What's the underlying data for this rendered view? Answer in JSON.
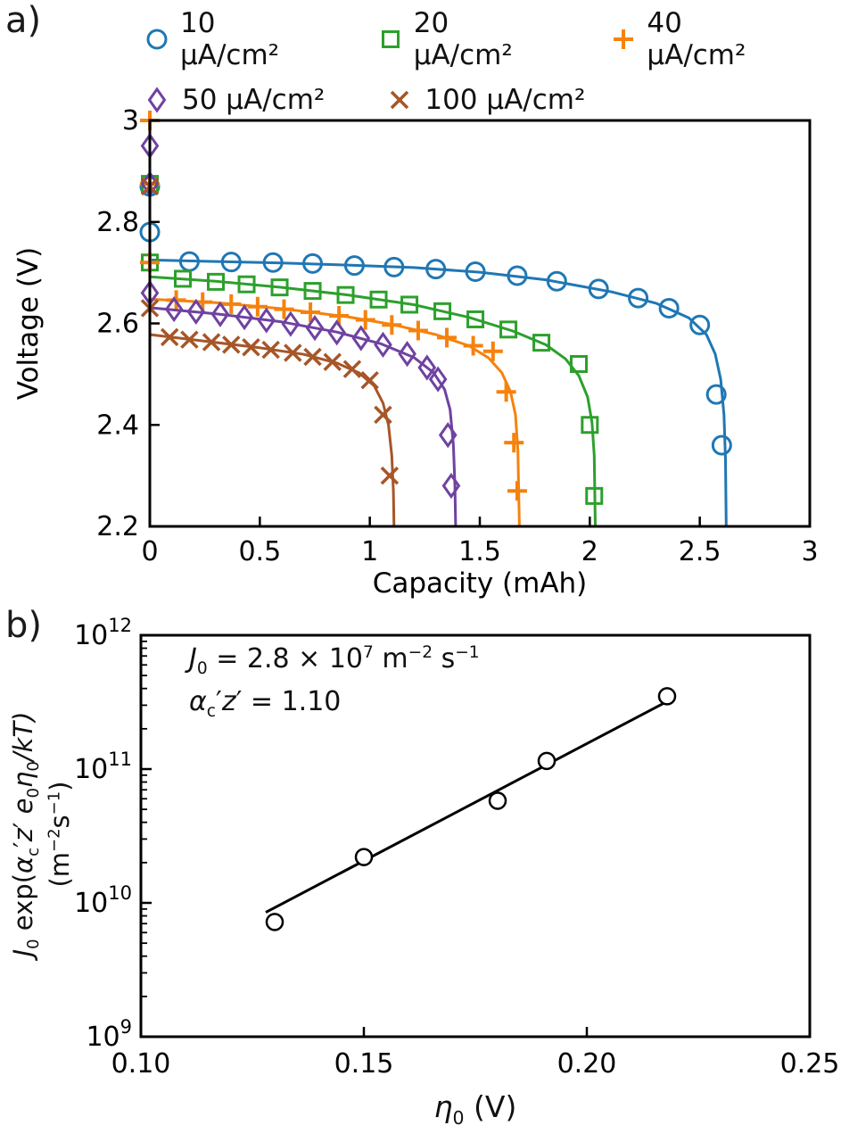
{
  "panel_a": {
    "label": "a)",
    "xlabel": "Capacity (mAh)",
    "ylabel": "Voltage (V)"
  },
  "panel_b": {
    "label": "b)",
    "xlabel": {
      "sym": "η",
      "sub": "0",
      "rest": " (V)"
    },
    "ylabel_line1": {
      "J": "J",
      "J_sub": "0",
      "exp_open": " exp(",
      "alpha": "α",
      "alpha_sub": "c",
      "prime1": "′",
      "z": "z",
      "prime2": "′",
      "e": " e",
      "e_sub": "0",
      "eta": "η",
      "eta_sub": "0",
      "close": "/kT)"
    },
    "ylabel_line2": {
      "open": "(m",
      "m_exp": "−2",
      "s": "s",
      "s_exp": "−1",
      "close": ")"
    },
    "annotation": {
      "J": "J",
      "J_sub": "0",
      "eq1": " = 2.8 × 10",
      "exp": "7",
      "unit_m": " m",
      "m_exp": "−2",
      "unit_s": " s",
      "s_exp": "−1",
      "alpha": "α",
      "alpha_sub": "c",
      "prime1": "′",
      "z": "z",
      "prime2": "′",
      "eq2": " = 1.10"
    }
  },
  "chart_data": [
    {
      "type": "line",
      "title": "Discharge curves at different current densities",
      "xlabel": "Capacity (mAh)",
      "ylabel": "Voltage (V)",
      "xlim": [
        0,
        3
      ],
      "ylim": [
        2.2,
        3.0
      ],
      "xticks": [
        0,
        0.5,
        1,
        1.5,
        2,
        2.5,
        3
      ],
      "xtick_labels": [
        "0",
        "0.5",
        "1",
        "1.5",
        "2",
        "2.5",
        "3"
      ],
      "yticks": [
        2.2,
        2.4,
        2.6,
        2.8,
        3
      ],
      "ytick_labels": [
        "2.2",
        "2.4",
        "2.6",
        "2.8",
        "3"
      ],
      "grid": false,
      "legend_position": "top",
      "series": [
        {
          "name": "10 µA/cm²",
          "color": "#1f77b4",
          "marker": "circle",
          "markers": [
            [
              0,
              2.87
            ],
            [
              0,
              2.78
            ],
            [
              0.18,
              2.722
            ],
            [
              0.37,
              2.721
            ],
            [
              0.56,
              2.72
            ],
            [
              0.74,
              2.718
            ],
            [
              0.93,
              2.714
            ],
            [
              1.11,
              2.711
            ],
            [
              1.3,
              2.707
            ],
            [
              1.48,
              2.702
            ],
            [
              1.67,
              2.694
            ],
            [
              1.85,
              2.683
            ],
            [
              2.04,
              2.668
            ],
            [
              2.22,
              2.65
            ],
            [
              2.36,
              2.63
            ],
            [
              2.5,
              2.597
            ],
            [
              2.575,
              2.46
            ],
            [
              2.6,
              2.36
            ]
          ],
          "line": [
            [
              0,
              2.725
            ],
            [
              0.3,
              2.722
            ],
            [
              0.6,
              2.719
            ],
            [
              0.9,
              2.715
            ],
            [
              1.2,
              2.71
            ],
            [
              1.5,
              2.701
            ],
            [
              1.8,
              2.686
            ],
            [
              2.1,
              2.662
            ],
            [
              2.3,
              2.64
            ],
            [
              2.45,
              2.611
            ],
            [
              2.53,
              2.578
            ],
            [
              2.57,
              2.54
            ],
            [
              2.595,
              2.49
            ],
            [
              2.61,
              2.42
            ],
            [
              2.617,
              2.33
            ],
            [
              2.62,
              2.2
            ]
          ]
        },
        {
          "name": "20 µA/cm²",
          "color": "#2ca02c",
          "marker": "square",
          "markers": [
            [
              0,
              2.875
            ],
            [
              0,
              2.72
            ],
            [
              0.15,
              2.688
            ],
            [
              0.3,
              2.682
            ],
            [
              0.44,
              2.677
            ],
            [
              0.59,
              2.671
            ],
            [
              0.74,
              2.664
            ],
            [
              0.89,
              2.656
            ],
            [
              1.04,
              2.647
            ],
            [
              1.18,
              2.637
            ],
            [
              1.33,
              2.624
            ],
            [
              1.48,
              2.608
            ],
            [
              1.63,
              2.588
            ],
            [
              1.78,
              2.562
            ],
            [
              1.95,
              2.52
            ],
            [
              2.0,
              2.4
            ],
            [
              2.02,
              2.26
            ]
          ],
          "line": [
            [
              0,
              2.692
            ],
            [
              0.3,
              2.683
            ],
            [
              0.6,
              2.671
            ],
            [
              0.9,
              2.656
            ],
            [
              1.2,
              2.637
            ],
            [
              1.45,
              2.612
            ],
            [
              1.65,
              2.585
            ],
            [
              1.8,
              2.558
            ],
            [
              1.89,
              2.53
            ],
            [
              1.95,
              2.497
            ],
            [
              1.99,
              2.455
            ],
            [
              2.01,
              2.405
            ],
            [
              2.02,
              2.34
            ],
            [
              2.025,
              2.2
            ]
          ]
        },
        {
          "name": "40 µA/cm²",
          "color": "#f5820d",
          "marker": "plus",
          "markers": [
            [
              0,
              3.0
            ],
            [
              0,
              2.875
            ],
            [
              0,
              2.72
            ],
            [
              0.12,
              2.646
            ],
            [
              0.24,
              2.642
            ],
            [
              0.37,
              2.638
            ],
            [
              0.49,
              2.633
            ],
            [
              0.61,
              2.628
            ],
            [
              0.73,
              2.622
            ],
            [
              0.86,
              2.615
            ],
            [
              0.98,
              2.607
            ],
            [
              1.1,
              2.597
            ],
            [
              1.22,
              2.586
            ],
            [
              1.35,
              2.572
            ],
            [
              1.47,
              2.556
            ],
            [
              1.56,
              2.545
            ],
            [
              1.62,
              2.465
            ],
            [
              1.655,
              2.365
            ],
            [
              1.67,
              2.27
            ]
          ],
          "line": [
            [
              0,
              2.648
            ],
            [
              0.3,
              2.641
            ],
            [
              0.6,
              2.629
            ],
            [
              0.9,
              2.613
            ],
            [
              1.1,
              2.598
            ],
            [
              1.3,
              2.578
            ],
            [
              1.45,
              2.556
            ],
            [
              1.54,
              2.532
            ],
            [
              1.6,
              2.503
            ],
            [
              1.64,
              2.465
            ],
            [
              1.662,
              2.42
            ],
            [
              1.673,
              2.35
            ],
            [
              1.68,
              2.2
            ]
          ]
        },
        {
          "name": "50 µA/cm²",
          "color": "#6f42a0",
          "marker": "diamond",
          "markers": [
            [
              0,
              2.95
            ],
            [
              0,
              2.875
            ],
            [
              0,
              2.66
            ],
            [
              0.11,
              2.628
            ],
            [
              0.21,
              2.623
            ],
            [
              0.32,
              2.618
            ],
            [
              0.43,
              2.612
            ],
            [
              0.53,
              2.606
            ],
            [
              0.64,
              2.599
            ],
            [
              0.75,
              2.591
            ],
            [
              0.85,
              2.582
            ],
            [
              0.96,
              2.571
            ],
            [
              1.06,
              2.558
            ],
            [
              1.17,
              2.54
            ],
            [
              1.26,
              2.513
            ],
            [
              1.31,
              2.49
            ],
            [
              1.355,
              2.38
            ],
            [
              1.37,
              2.28
            ]
          ],
          "line": [
            [
              0,
              2.631
            ],
            [
              0.3,
              2.619
            ],
            [
              0.6,
              2.603
            ],
            [
              0.85,
              2.583
            ],
            [
              1.05,
              2.56
            ],
            [
              1.2,
              2.533
            ],
            [
              1.29,
              2.503
            ],
            [
              1.34,
              2.47
            ],
            [
              1.365,
              2.43
            ],
            [
              1.38,
              2.36
            ],
            [
              1.387,
              2.28
            ],
            [
              1.39,
              2.2
            ]
          ]
        },
        {
          "name": "100 µA/cm²",
          "color": "#a65628",
          "marker": "x",
          "markers": [
            [
              0,
              2.87
            ],
            [
              0,
              2.63
            ],
            [
              0.09,
              2.573
            ],
            [
              0.18,
              2.568
            ],
            [
              0.28,
              2.563
            ],
            [
              0.37,
              2.558
            ],
            [
              0.46,
              2.553
            ],
            [
              0.55,
              2.548
            ],
            [
              0.65,
              2.542
            ],
            [
              0.74,
              2.534
            ],
            [
              0.83,
              2.524
            ],
            [
              0.92,
              2.51
            ],
            [
              1.0,
              2.488
            ],
            [
              1.06,
              2.42
            ],
            [
              1.09,
              2.3
            ]
          ],
          "line": [
            [
              0,
              2.578
            ],
            [
              0.25,
              2.565
            ],
            [
              0.5,
              2.552
            ],
            [
              0.7,
              2.539
            ],
            [
              0.85,
              2.522
            ],
            [
              0.95,
              2.503
            ],
            [
              1.02,
              2.477
            ],
            [
              1.06,
              2.443
            ],
            [
              1.085,
              2.4
            ],
            [
              1.1,
              2.34
            ],
            [
              1.107,
              2.27
            ],
            [
              1.11,
              2.2
            ]
          ]
        }
      ]
    },
    {
      "type": "scatter",
      "title": "Tafel-type fit",
      "x_axis_label": "η0 (V)",
      "y_axis_label": "J0 exp(αc′z′ e0η0/kT) (m−2 s−1)",
      "xlim": [
        0.1,
        0.25
      ],
      "xticks": [
        0.1,
        0.15,
        0.2,
        0.25
      ],
      "xtick_labels": [
        "0.10",
        "0.15",
        "0.20",
        "0.25"
      ],
      "y_scale": "log",
      "ylog_range": [
        9,
        12
      ],
      "ytick_exponents": [
        9,
        10,
        11,
        12
      ],
      "points": [
        [
          0.13,
          7200000000.0
        ],
        [
          0.15,
          22000000000.0
        ],
        [
          0.18,
          58000000000.0
        ],
        [
          0.191,
          115000000000.0
        ],
        [
          0.218,
          350000000000.0
        ]
      ],
      "fit_line": [
        [
          0.128,
          8500000000.0
        ],
        [
          0.2195,
          340000000000.0
        ]
      ],
      "fit_J0": "2.8 × 10^7 m^-2 s^-1",
      "fit_alpha_z": 1.1,
      "color": "#000000"
    }
  ]
}
